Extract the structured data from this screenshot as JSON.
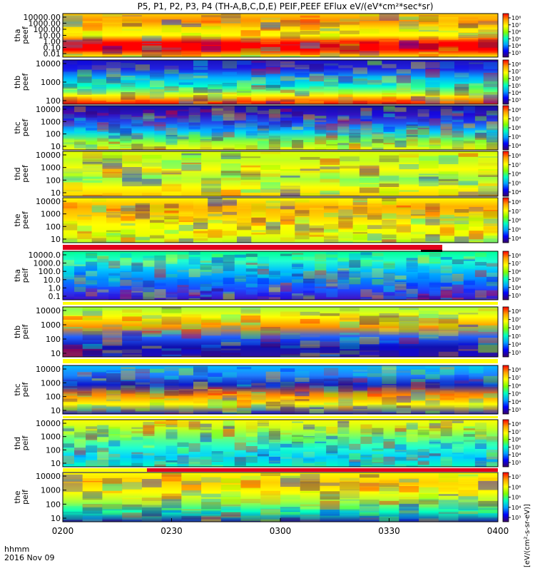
{
  "title": "P5, P1, P2, P3, P4 (TH-A,B,C,D,E) PEIF,PEEF EFlux eV/(eV*cm²*sec*sr)",
  "colorbar_unit_label": "[eV/(cm²-s-sr-eV)]",
  "time_axis": {
    "ticks": [
      "0200",
      "0230",
      "0300",
      "0330",
      "0400"
    ],
    "label_line1": "hhmm",
    "label_line2": "2016 Nov 09"
  },
  "chart_data": {
    "type": "heatmap",
    "x_range": [
      "2016-11-09 02:00",
      "2016-11-09 04:00"
    ],
    "y_scale": "log",
    "z_scale": "log",
    "panels": [
      {
        "name": "tha peef",
        "ylabel": [
          "tha",
          "peef"
        ],
        "y_ticks": [
          "10000.00",
          "1000.00",
          "100.00",
          "10.00",
          "1.00",
          "0.10",
          "0.01"
        ],
        "colorbar_ticks": [
          "10⁸",
          "10⁷",
          "10⁶",
          "10⁵",
          "10⁴",
          "10³"
        ]
      },
      {
        "name": "thb peef",
        "ylabel": [
          "thb",
          "peef"
        ],
        "y_ticks": [
          "10000",
          "1000",
          "100"
        ],
        "colorbar_ticks": [
          "10⁸",
          "10⁷",
          "10⁶",
          "10⁵",
          "10⁴",
          "10³"
        ]
      },
      {
        "name": "thc peef",
        "ylabel": [
          "thc",
          "peef"
        ],
        "y_ticks": [
          "10000",
          "1000",
          "100",
          "10"
        ],
        "colorbar_ticks": [
          "10⁸",
          "10⁷",
          "10⁶",
          "10⁵",
          "10⁴"
        ]
      },
      {
        "name": "thd peef",
        "ylabel": [
          "thd",
          "peef"
        ],
        "y_ticks": [
          "10000",
          "1000",
          "100",
          "10"
        ],
        "colorbar_ticks": [
          "10⁸",
          "10⁷",
          "10⁶",
          "10⁵",
          "10⁴"
        ]
      },
      {
        "name": "the peef",
        "ylabel": [
          "the",
          "peef"
        ],
        "y_ticks": [
          "10000",
          "1000",
          "100",
          "10"
        ],
        "colorbar_ticks": [
          "10⁸",
          "10⁷",
          "10⁶",
          "10⁵",
          "10⁴"
        ]
      },
      {
        "name": "tha peif",
        "ylabel": [
          "tha",
          "peif"
        ],
        "y_ticks": [
          "10000.0",
          "1000.0",
          "100.0",
          "10.0",
          "1.0",
          "0.1"
        ],
        "colorbar_ticks": [
          "10⁸",
          "10⁷",
          "10⁶",
          "10⁵",
          "10⁴",
          "10³"
        ]
      },
      {
        "name": "thb peif",
        "ylabel": [
          "thb",
          "peif"
        ],
        "y_ticks": [
          "10000",
          "1000",
          "100",
          "10"
        ],
        "colorbar_ticks": [
          "10⁸",
          "10⁷",
          "10⁶",
          "10⁵",
          "10⁴",
          "10³"
        ]
      },
      {
        "name": "thc peif",
        "ylabel": [
          "thc",
          "peif"
        ],
        "y_ticks": [
          "10000",
          "1000",
          "100",
          "10"
        ],
        "colorbar_ticks": [
          "10⁸",
          "10⁷",
          "10⁶",
          "10⁵",
          "10⁴",
          "10³"
        ]
      },
      {
        "name": "thd peif",
        "ylabel": [
          "thd",
          "peif"
        ],
        "y_ticks": [
          "10000",
          "1000",
          "100",
          "10"
        ],
        "colorbar_ticks": [
          "10⁸",
          "10⁷",
          "10⁶",
          "10⁵",
          "10⁴",
          "10³"
        ]
      },
      {
        "name": "the peif",
        "ylabel": [
          "the",
          "peif"
        ],
        "y_ticks": [
          "10000",
          "1000",
          "100",
          "10"
        ],
        "colorbar_ticks": [
          "10⁷",
          "10⁶",
          "10⁵",
          "10⁴",
          "10³"
        ]
      }
    ]
  },
  "colors": {
    "jet": [
      "#3a0066",
      "#0000ff",
      "#00a0ff",
      "#00ffc0",
      "#7fff00",
      "#ffff00",
      "#ffa000",
      "#ff0000"
    ],
    "status_red": "#e0001b",
    "status_yellow": "#ffff00",
    "status_black": "#000000"
  }
}
